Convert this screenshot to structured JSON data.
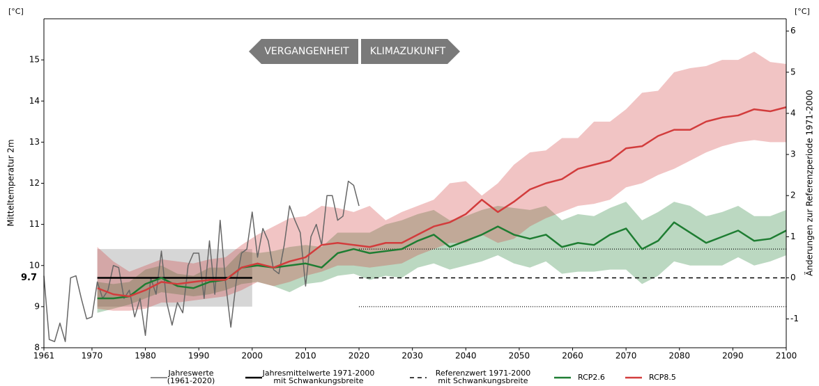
{
  "chart_data": {
    "type": "line",
    "y_label": "Mitteltemperatur 2m",
    "y2_label": "Änderungen zur Referenzperiode 1971-2000",
    "y_unit": "[°C]",
    "y2_unit": "[°C]",
    "xlim": [
      1961,
      2100
    ],
    "xticks": [
      1961,
      1970,
      1980,
      1990,
      2000,
      2010,
      2020,
      2030,
      2040,
      2050,
      2060,
      2070,
      2080,
      2090,
      2100
    ],
    "ylim": [
      8,
      16
    ],
    "yticks": [
      8,
      9,
      10,
      11,
      12,
      13,
      14,
      15
    ],
    "y2lim": [
      -1.7,
      6.3
    ],
    "y2ticks": [
      -1,
      0,
      1,
      2,
      3,
      4,
      5,
      6
    ],
    "arrows": {
      "left": "VERGANGENHEIT",
      "right": "KLIMAZUKUNFT"
    },
    "reference": {
      "value": 9.7,
      "lower": 9.0,
      "upper": 10.4,
      "period": [
        1971,
        2000
      ],
      "projection_start": 2020,
      "mean_label": [
        "Jahresmittelwerte 1971-2000",
        "mit Schwankungsbreite"
      ],
      "ref_label": [
        "Referenzwert 1971-2000",
        "mit Schwankungsbreite"
      ]
    },
    "observed": {
      "name": [
        "Jahreswerte",
        "(1961-2020)"
      ],
      "color": "#666666",
      "x": [
        1961,
        1962,
        1963,
        1964,
        1965,
        1966,
        1967,
        1968,
        1969,
        1970,
        1971,
        1972,
        1973,
        1974,
        1975,
        1976,
        1977,
        1978,
        1979,
        1980,
        1981,
        1982,
        1983,
        1984,
        1985,
        1986,
        1987,
        1988,
        1989,
        1990,
        1991,
        1992,
        1993,
        1994,
        1995,
        1996,
        1997,
        1998,
        1999,
        2000,
        2001,
        2002,
        2003,
        2004,
        2005,
        2006,
        2007,
        2008,
        2009,
        2010,
        2011,
        2012,
        2013,
        2014,
        2015,
        2016,
        2017,
        2018,
        2019,
        2020
      ],
      "values": [
        9.75,
        8.2,
        8.15,
        8.6,
        8.15,
        9.7,
        9.75,
        9.2,
        8.7,
        8.75,
        9.6,
        9.2,
        9.4,
        10.0,
        9.95,
        9.2,
        9.4,
        8.75,
        9.2,
        8.3,
        9.7,
        9.3,
        10.35,
        9.1,
        8.55,
        9.1,
        8.85,
        10.0,
        10.3,
        10.3,
        9.2,
        10.6,
        9.3,
        11.1,
        9.6,
        8.5,
        9.6,
        10.3,
        10.4,
        11.3,
        10.2,
        10.9,
        10.6,
        9.9,
        9.8,
        10.5,
        11.45,
        11.1,
        10.8,
        9.5,
        10.7,
        11.0,
        10.5,
        11.7,
        11.7,
        11.1,
        11.2,
        12.05,
        11.95,
        11.45
      ]
    },
    "series": [
      {
        "name": "RCP2.6",
        "color": "#1e7d32",
        "x": [
          1971,
          1974,
          1977,
          1980,
          1983,
          1986,
          1989,
          1992,
          1995,
          1998,
          2001,
          2004,
          2007,
          2010,
          2013,
          2016,
          2019,
          2022,
          2025,
          2028,
          2031,
          2034,
          2037,
          2040,
          2043,
          2046,
          2049,
          2052,
          2055,
          2058,
          2061,
          2064,
          2067,
          2070,
          2073,
          2076,
          2079,
          2082,
          2085,
          2088,
          2091,
          2094,
          2097,
          2100
        ],
        "values": [
          9.2,
          9.2,
          9.25,
          9.55,
          9.7,
          9.5,
          9.45,
          9.6,
          9.65,
          9.95,
          10.0,
          9.95,
          10.0,
          10.05,
          9.95,
          10.3,
          10.4,
          10.3,
          10.35,
          10.4,
          10.6,
          10.75,
          10.45,
          10.6,
          10.75,
          10.95,
          10.75,
          10.65,
          10.75,
          10.45,
          10.55,
          10.5,
          10.75,
          10.9,
          10.4,
          10.6,
          11.05,
          10.8,
          10.55,
          10.7,
          10.85,
          10.6,
          10.65,
          10.85
        ],
        "lower": [
          8.85,
          8.95,
          9.05,
          9.2,
          9.35,
          9.3,
          9.25,
          9.3,
          9.4,
          9.55,
          9.6,
          9.5,
          9.35,
          9.55,
          9.6,
          9.75,
          9.8,
          9.65,
          9.75,
          9.7,
          9.95,
          10.05,
          9.9,
          10.0,
          10.1,
          10.25,
          10.05,
          9.95,
          10.1,
          9.8,
          9.85,
          9.85,
          9.9,
          9.9,
          9.55,
          9.75,
          10.1,
          10.0,
          10.0,
          10.0,
          10.2,
          10.0,
          10.1,
          10.25
        ],
        "upper": [
          9.6,
          9.55,
          9.6,
          9.9,
          10.0,
          9.8,
          9.75,
          9.95,
          9.95,
          10.35,
          10.3,
          10.35,
          10.45,
          10.5,
          10.45,
          10.8,
          10.8,
          10.8,
          11.0,
          11.1,
          11.25,
          11.35,
          11.1,
          11.2,
          11.35,
          11.45,
          11.4,
          11.35,
          11.45,
          11.1,
          11.25,
          11.2,
          11.4,
          11.55,
          11.1,
          11.3,
          11.55,
          11.45,
          11.2,
          11.3,
          11.45,
          11.2,
          11.2,
          11.35
        ]
      },
      {
        "name": "RCP8.5",
        "color": "#d23c3c",
        "x": [
          1971,
          1974,
          1977,
          1980,
          1983,
          1986,
          1989,
          1992,
          1995,
          1998,
          2001,
          2004,
          2007,
          2010,
          2013,
          2016,
          2019,
          2022,
          2025,
          2028,
          2031,
          2034,
          2037,
          2040,
          2043,
          2046,
          2049,
          2052,
          2055,
          2058,
          2061,
          2064,
          2067,
          2070,
          2073,
          2076,
          2079,
          2082,
          2085,
          2088,
          2091,
          2094,
          2097,
          2100
        ],
        "values": [
          9.45,
          9.3,
          9.25,
          9.4,
          9.6,
          9.55,
          9.6,
          9.65,
          9.65,
          9.95,
          10.05,
          9.95,
          10.1,
          10.2,
          10.5,
          10.55,
          10.5,
          10.45,
          10.55,
          10.55,
          10.75,
          10.95,
          11.05,
          11.25,
          11.6,
          11.3,
          11.55,
          11.85,
          12.0,
          12.1,
          12.35,
          12.45,
          12.55,
          12.85,
          12.9,
          13.15,
          13.3,
          13.3,
          13.5,
          13.6,
          13.65,
          13.8,
          13.75,
          13.85
        ],
        "lower": [
          8.95,
          8.9,
          8.9,
          8.95,
          9.1,
          9.1,
          9.15,
          9.2,
          9.25,
          9.4,
          9.6,
          9.5,
          9.6,
          9.75,
          9.85,
          10.0,
          10.0,
          9.95,
          10.0,
          10.05,
          10.25,
          10.4,
          10.55,
          10.55,
          10.75,
          10.55,
          10.65,
          10.95,
          11.15,
          11.3,
          11.45,
          11.5,
          11.6,
          11.9,
          12.0,
          12.2,
          12.35,
          12.55,
          12.75,
          12.9,
          13.0,
          13.05,
          13.0,
          13.0
        ],
        "upper": [
          10.45,
          10.1,
          9.85,
          10.0,
          10.15,
          10.1,
          10.05,
          10.15,
          10.2,
          10.5,
          10.75,
          10.95,
          11.15,
          11.2,
          11.45,
          11.4,
          11.3,
          11.45,
          11.1,
          11.3,
          11.45,
          11.6,
          12.0,
          12.05,
          11.7,
          12.0,
          12.45,
          12.75,
          12.8,
          13.1,
          13.1,
          13.5,
          13.5,
          13.8,
          14.2,
          14.25,
          14.7,
          14.8,
          14.85,
          15.0,
          15.0,
          15.2,
          14.95,
          14.9
        ]
      }
    ]
  }
}
